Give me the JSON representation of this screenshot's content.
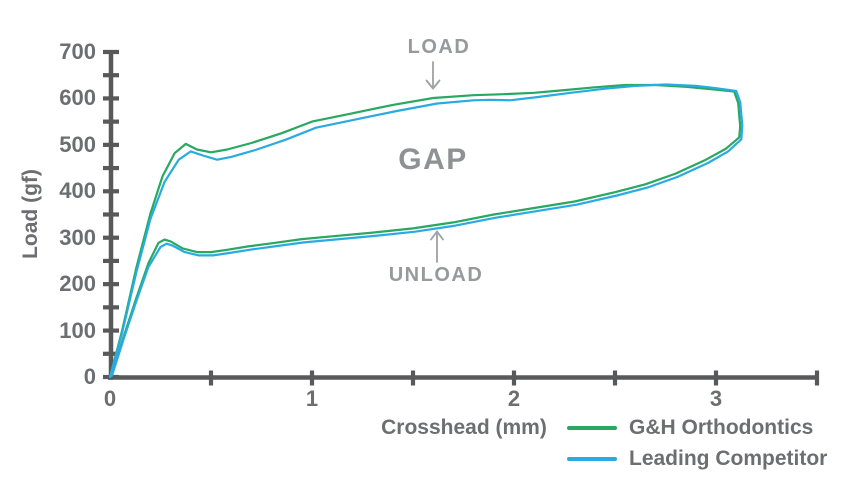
{
  "annotations": {
    "load_label": "LOAD",
    "gap_label": "GAP",
    "unload_label": "UNLOAD"
  },
  "chart_data": {
    "type": "line",
    "title": "",
    "xlabel": "Crosshead (mm)",
    "ylabel": "Load (gf)",
    "xlim": [
      0,
      3.5
    ],
    "ylim": [
      0,
      700
    ],
    "x_major_ticks": [
      0,
      1,
      2,
      3
    ],
    "x_minor_step": 0.5,
    "y_major_ticks": [
      0,
      100,
      200,
      300,
      400,
      500,
      600,
      700
    ],
    "y_minor_step": 50,
    "grid": false,
    "legend_position": "bottom-right",
    "axis_color": "#58595B",
    "annotation_arrow_color": "#9EA0A3",
    "description": "Superelastic load/unload hysteresis loop: upper branch = LOAD, lower branch = UNLOAD, GAP between them",
    "series": [
      {
        "name": "G&H Orthodontics",
        "color": "#28A860",
        "points": [
          [
            0,
            0
          ],
          [
            0.06,
            100
          ],
          [
            0.13,
            235
          ],
          [
            0.2,
            352
          ],
          [
            0.26,
            432
          ],
          [
            0.32,
            482
          ],
          [
            0.375,
            502
          ],
          [
            0.43,
            490
          ],
          [
            0.5,
            484
          ],
          [
            0.58,
            490
          ],
          [
            0.7,
            504
          ],
          [
            0.85,
            525
          ],
          [
            1.0,
            550
          ],
          [
            1.2,
            568
          ],
          [
            1.4,
            586
          ],
          [
            1.6,
            601
          ],
          [
            1.8,
            607
          ],
          [
            1.95,
            609
          ],
          [
            2.1,
            612
          ],
          [
            2.25,
            618
          ],
          [
            2.4,
            624
          ],
          [
            2.55,
            629
          ],
          [
            2.7,
            629
          ],
          [
            2.85,
            625
          ],
          [
            3.0,
            619
          ],
          [
            3.09,
            615
          ],
          [
            3.11,
            590
          ],
          [
            3.12,
            540
          ],
          [
            3.115,
            516
          ],
          [
            3.05,
            492
          ],
          [
            2.95,
            468
          ],
          [
            2.8,
            438
          ],
          [
            2.65,
            415
          ],
          [
            2.5,
            398
          ],
          [
            2.3,
            378
          ],
          [
            2.1,
            364
          ],
          [
            1.9,
            350
          ],
          [
            1.7,
            333
          ],
          [
            1.5,
            320
          ],
          [
            1.3,
            311
          ],
          [
            1.1,
            303
          ],
          [
            0.95,
            297
          ],
          [
            0.8,
            288
          ],
          [
            0.68,
            281
          ],
          [
            0.58,
            274
          ],
          [
            0.5,
            269
          ],
          [
            0.43,
            269
          ],
          [
            0.36,
            277
          ],
          [
            0.3,
            292
          ],
          [
            0.27,
            296
          ],
          [
            0.24,
            289
          ],
          [
            0.19,
            245
          ],
          [
            0.13,
            170
          ],
          [
            0.07,
            90
          ],
          [
            0.01,
            5
          ],
          [
            0,
            0
          ]
        ]
      },
      {
        "name": "Leading Competitor",
        "color": "#29ABE2",
        "points": [
          [
            0,
            0
          ],
          [
            0.06,
            95
          ],
          [
            0.13,
            225
          ],
          [
            0.2,
            340
          ],
          [
            0.27,
            420
          ],
          [
            0.34,
            468
          ],
          [
            0.4,
            486
          ],
          [
            0.46,
            477
          ],
          [
            0.53,
            468
          ],
          [
            0.6,
            474
          ],
          [
            0.72,
            489
          ],
          [
            0.87,
            511
          ],
          [
            1.02,
            537
          ],
          [
            1.22,
            555
          ],
          [
            1.42,
            573
          ],
          [
            1.62,
            589
          ],
          [
            1.8,
            596
          ],
          [
            1.88,
            597
          ],
          [
            1.98,
            596
          ],
          [
            2.12,
            603
          ],
          [
            2.28,
            612
          ],
          [
            2.45,
            621
          ],
          [
            2.6,
            627
          ],
          [
            2.75,
            630
          ],
          [
            2.9,
            627
          ],
          [
            3.0,
            622
          ],
          [
            3.1,
            616
          ],
          [
            3.12,
            592
          ],
          [
            3.13,
            542
          ],
          [
            3.125,
            512
          ],
          [
            3.06,
            486
          ],
          [
            2.96,
            461
          ],
          [
            2.81,
            431
          ],
          [
            2.66,
            408
          ],
          [
            2.51,
            391
          ],
          [
            2.31,
            371
          ],
          [
            2.11,
            357
          ],
          [
            1.91,
            343
          ],
          [
            1.71,
            326
          ],
          [
            1.51,
            313
          ],
          [
            1.31,
            304
          ],
          [
            1.11,
            296
          ],
          [
            0.96,
            290
          ],
          [
            0.81,
            281
          ],
          [
            0.69,
            274
          ],
          [
            0.59,
            267
          ],
          [
            0.51,
            262
          ],
          [
            0.44,
            262
          ],
          [
            0.37,
            269
          ],
          [
            0.31,
            283
          ],
          [
            0.28,
            287
          ],
          [
            0.25,
            280
          ],
          [
            0.19,
            237
          ],
          [
            0.13,
            163
          ],
          [
            0.07,
            85
          ],
          [
            0.01,
            3
          ],
          [
            0,
            0
          ]
        ]
      }
    ]
  }
}
